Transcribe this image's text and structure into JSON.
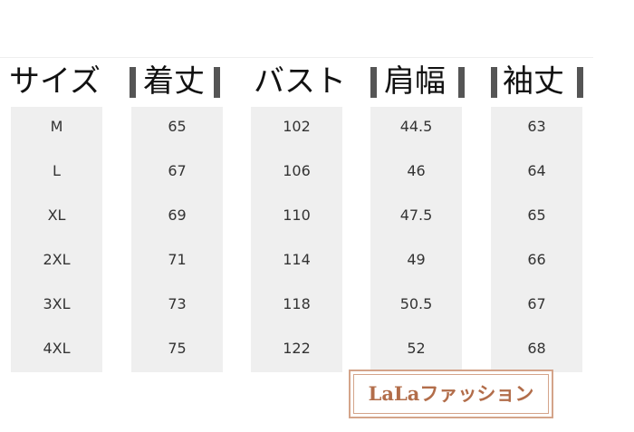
{
  "headers": [
    "サイズ",
    "着丈",
    "バスト",
    "肩幅",
    "袖丈"
  ],
  "columns": [
    [
      "M",
      "L",
      "XL",
      "2XL",
      "3XL",
      "4XL"
    ],
    [
      "65",
      "67",
      "69",
      "71",
      "73",
      "75"
    ],
    [
      "102",
      "106",
      "110",
      "114",
      "118",
      "122"
    ],
    [
      "44.5",
      "46",
      "47.5",
      "49",
      "50.5",
      "52"
    ],
    [
      "63",
      "64",
      "65",
      "66",
      "67",
      "68"
    ]
  ],
  "logo": "LaLaファッション",
  "colors": {
    "header_bar": "#555555",
    "column_bg": "#efefef",
    "logo": "#b26d4a"
  }
}
